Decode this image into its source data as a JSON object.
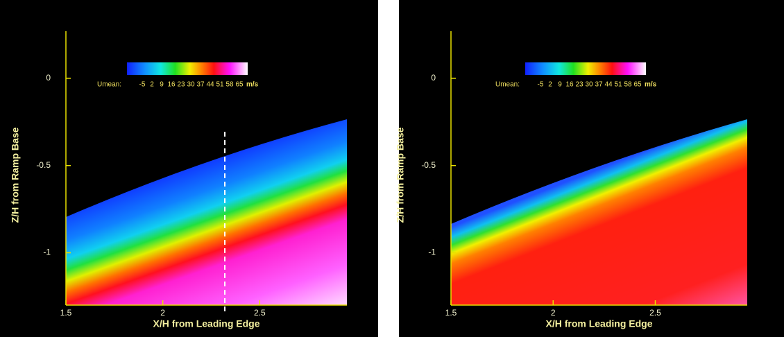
{
  "chart_data": [
    {
      "type": "contour",
      "xlabel": "X/H from Leading Edge",
      "ylabel": "Z/H from Ramp Base",
      "xlim": [
        1.5,
        2.95
      ],
      "ylim": [
        -1.3,
        0.27
      ],
      "xticks": [
        1.5,
        2,
        2.5
      ],
      "yticks": [
        0,
        -0.5,
        -1
      ],
      "colorbar": {
        "label": "Umean:",
        "ticks": [
          -5,
          2,
          9,
          16,
          23,
          30,
          37,
          44,
          51,
          58,
          65
        ],
        "unit": "m/s"
      },
      "reference_line_x": 2.32
    },
    {
      "type": "contour",
      "xlabel": "X/H from Leading Edge",
      "ylabel": "Z/H from Ramp Base",
      "xlim": [
        1.5,
        2.95
      ],
      "ylim": [
        -1.3,
        0.27
      ],
      "xticks": [
        1.5,
        2,
        2.5
      ],
      "yticks": [
        0,
        -0.5,
        -1
      ],
      "colorbar": {
        "label": "Umean:",
        "ticks": [
          -5,
          2,
          9,
          16,
          23,
          30,
          37,
          44,
          51,
          58,
          65
        ],
        "unit": "m/s"
      }
    }
  ]
}
